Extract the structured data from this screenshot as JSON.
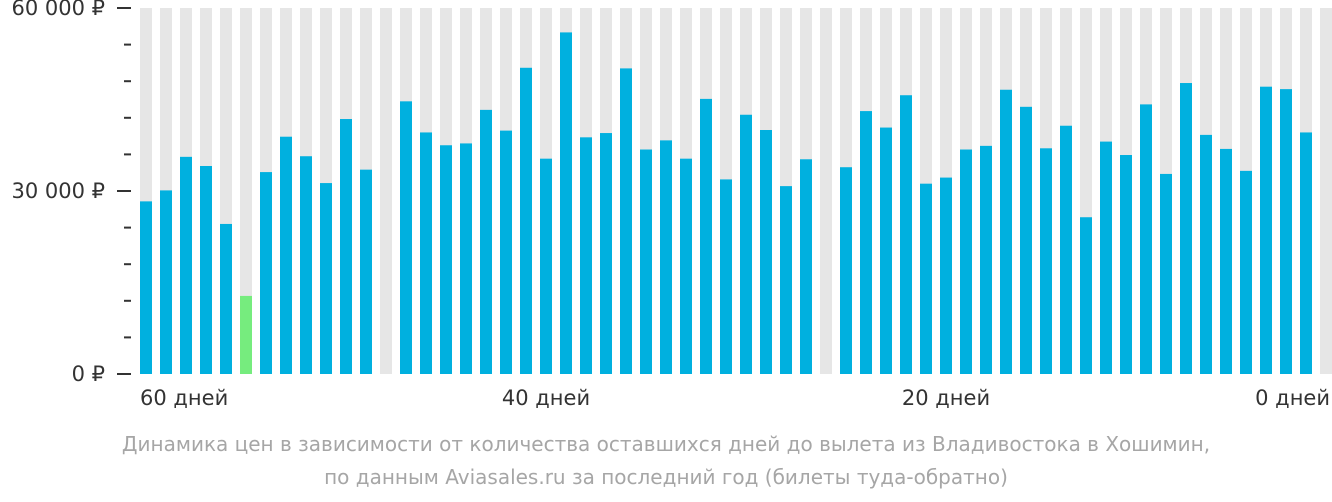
{
  "chart_data": {
    "type": "bar",
    "y_ticks": [
      {
        "value": 60000,
        "label": "60 000 ₽"
      },
      {
        "value": 30000,
        "label": "30 000 ₽"
      },
      {
        "value": 0,
        "label": "0 ₽"
      }
    ],
    "ylim": [
      0,
      60000
    ],
    "x_ticks": [
      {
        "day": 60,
        "label": "60 дней"
      },
      {
        "day": 40,
        "label": "40 дней"
      },
      {
        "day": 20,
        "label": "20 дней"
      },
      {
        "day": 0,
        "label": "0 дней"
      }
    ],
    "xlim": [
      60,
      0
    ],
    "highlight_color": "#76ec7e",
    "bar_color": "#00b0df",
    "background_color": "#e6e6e6",
    "days": [
      60,
      59,
      58,
      57,
      56,
      55,
      54,
      53,
      52,
      51,
      50,
      49,
      48,
      47,
      46,
      45,
      44,
      43,
      42,
      41,
      40,
      39,
      38,
      37,
      36,
      35,
      34,
      33,
      32,
      31,
      30,
      29,
      28,
      27,
      26,
      25,
      24,
      23,
      22,
      21,
      20,
      19,
      18,
      17,
      16,
      15,
      14,
      13,
      12,
      11,
      10,
      9,
      8,
      7,
      6,
      5,
      4,
      3,
      2,
      1,
      0
    ],
    "values": [
      28300,
      30100,
      35600,
      34100,
      24600,
      12800,
      33100,
      38900,
      35700,
      31300,
      41800,
      33500,
      null,
      44700,
      39600,
      37500,
      37800,
      43300,
      39900,
      50200,
      35300,
      56000,
      38800,
      39500,
      50100,
      36800,
      38300,
      35300,
      45100,
      31900,
      42500,
      40000,
      30800,
      35200,
      null,
      33900,
      43100,
      40400,
      45700,
      31200,
      32200,
      36800,
      37400,
      46600,
      43800,
      37000,
      40700,
      25700,
      38100,
      35900,
      44200,
      32800,
      47700,
      39200,
      36900,
      33300,
      47100,
      46700,
      39600,
      null,
      null
    ],
    "highlight_index": 5,
    "caption_line1": "Динамика цен в зависимости от количества оставшихся дней до вылета из Владивостока в Хошимин,",
    "caption_line2": "по данным Aviasales.ru за последний год (билеты туда-обратно)"
  }
}
